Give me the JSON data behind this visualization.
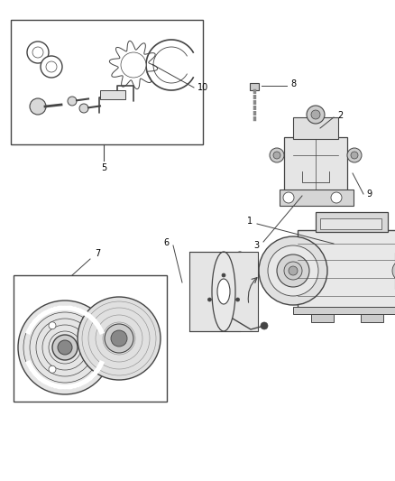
{
  "bg_color": "#ffffff",
  "lc": "#444444",
  "fig_width": 4.38,
  "fig_height": 5.33,
  "dpi": 100
}
